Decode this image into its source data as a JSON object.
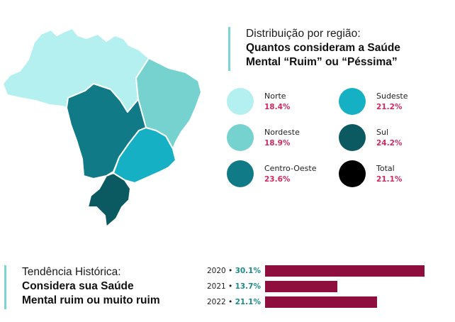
{
  "header": {
    "subtitle": "Distribuição por região:",
    "title_line1": "Quantos consideram a Saúde",
    "title_line2": "Mental “Ruim” ou “Péssima”"
  },
  "legend": [
    {
      "name": "Norte",
      "value": "18.4%",
      "color": "#b3f0ef"
    },
    {
      "name": "Nordeste",
      "value": "18.9%",
      "color": "#76d2cf"
    },
    {
      "name": "Centro-Oeste",
      "value": "23.6%",
      "color": "#117a87"
    },
    {
      "name": "Sudeste",
      "value": "21.2%",
      "color": "#16b0c4"
    },
    {
      "name": "Sul",
      "value": "24.2%",
      "color": "#0b5a61"
    },
    {
      "name": "Total",
      "value": "21.1%",
      "color": "#000000"
    }
  ],
  "trend": {
    "subtitle": "Tendência Histórica:",
    "title_line1": "Considera sua Saúde",
    "title_line2": "Mental ruim ou muito ruim"
  },
  "chart_data": [
    {
      "type": "map",
      "categories": [
        "Norte",
        "Nordeste",
        "Centro-Oeste",
        "Sudeste",
        "Sul",
        "Total"
      ],
      "values": [
        18.4,
        18.9,
        23.6,
        21.2,
        24.2,
        21.1
      ],
      "unit": "%"
    },
    {
      "type": "bar",
      "orientation": "horizontal",
      "categories": [
        "2020",
        "2021",
        "2022"
      ],
      "values": [
        30.1,
        13.7,
        21.1
      ],
      "labels": [
        "30.1%",
        "13.7%",
        "21.1%"
      ],
      "separator": "•",
      "xlim": [
        0,
        30.1
      ],
      "bar_color": "#8e0f3e"
    }
  ]
}
